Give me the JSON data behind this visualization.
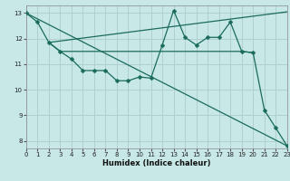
{
  "xlabel": "Humidex (Indice chaleur)",
  "bg_color": "#c8e8e8",
  "grid_color": "#b0d0d0",
  "line_color": "#1a6b5a",
  "xlim": [
    0,
    23
  ],
  "ylim": [
    7.7,
    13.3
  ],
  "xticks": [
    0,
    1,
    2,
    3,
    4,
    5,
    6,
    7,
    8,
    9,
    10,
    11,
    12,
    13,
    14,
    15,
    16,
    17,
    18,
    19,
    20,
    21,
    22,
    23
  ],
  "yticks": [
    8,
    9,
    10,
    11,
    12,
    13
  ],
  "line1_x": [
    0,
    1,
    2,
    3,
    4,
    5,
    6,
    7,
    8,
    9,
    10,
    11,
    12,
    13,
    14,
    15,
    16,
    17,
    18,
    19,
    20,
    21,
    22,
    23
  ],
  "line1_y": [
    13.0,
    12.65,
    11.85,
    11.5,
    11.2,
    10.75,
    10.75,
    10.75,
    10.35,
    10.35,
    10.5,
    10.45,
    11.75,
    13.1,
    12.05,
    11.75,
    12.05,
    12.05,
    12.65,
    11.5,
    11.45,
    9.2,
    8.5,
    7.8
  ],
  "line2_x": [
    0,
    23
  ],
  "line2_y": [
    13.0,
    7.8
  ],
  "line3_x": [
    2,
    23
  ],
  "line3_y": [
    11.85,
    13.05
  ],
  "line4_x": [
    2,
    3,
    4,
    5,
    6,
    7,
    8,
    9,
    10,
    11,
    12,
    13,
    14,
    15,
    16,
    17,
    18,
    19,
    20
  ],
  "line4_y": [
    11.85,
    11.5,
    11.5,
    11.5,
    11.5,
    11.5,
    11.5,
    11.5,
    11.5,
    11.5,
    11.5,
    11.5,
    11.5,
    11.5,
    11.5,
    11.5,
    11.5,
    11.5,
    11.45
  ]
}
